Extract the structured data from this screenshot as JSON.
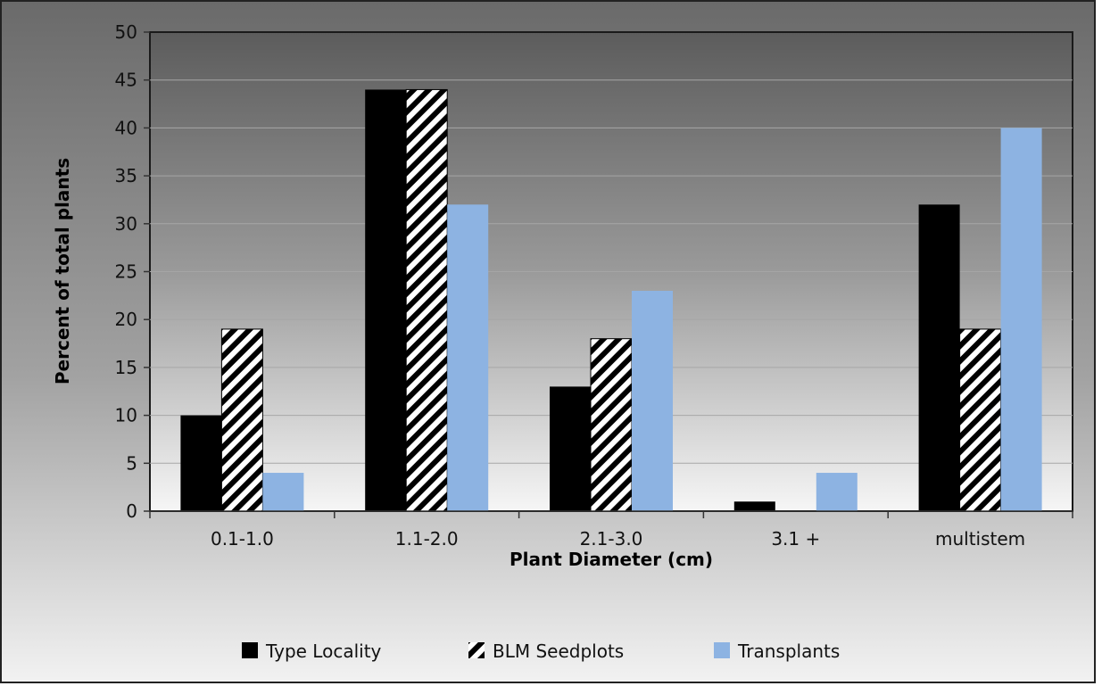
{
  "chart_data": {
    "type": "bar",
    "title": "",
    "xlabel": "Plant Diameter (cm)",
    "ylabel": "Percent of total plants",
    "ylim": [
      0,
      50
    ],
    "yticks": [
      0,
      5,
      10,
      15,
      20,
      25,
      30,
      35,
      40,
      45,
      50
    ],
    "grid": true,
    "legend_position": "bottom",
    "categories": [
      "0.1-1.0",
      "1.1-2.0",
      "2.1-3.0",
      "3.1 +",
      "multistem"
    ],
    "series": [
      {
        "name": "Type Locality",
        "values": [
          10,
          44,
          13,
          1,
          32
        ],
        "color": "#000000",
        "pattern": "solid"
      },
      {
        "name": "BLM Seedplots",
        "values": [
          19,
          44,
          18,
          0,
          19
        ],
        "color": "#000000",
        "pattern": "diagonal-hatch"
      },
      {
        "name": "Transplants",
        "values": [
          4,
          32,
          23,
          4,
          40
        ],
        "color": "#8db3e2",
        "pattern": "solid"
      }
    ]
  }
}
